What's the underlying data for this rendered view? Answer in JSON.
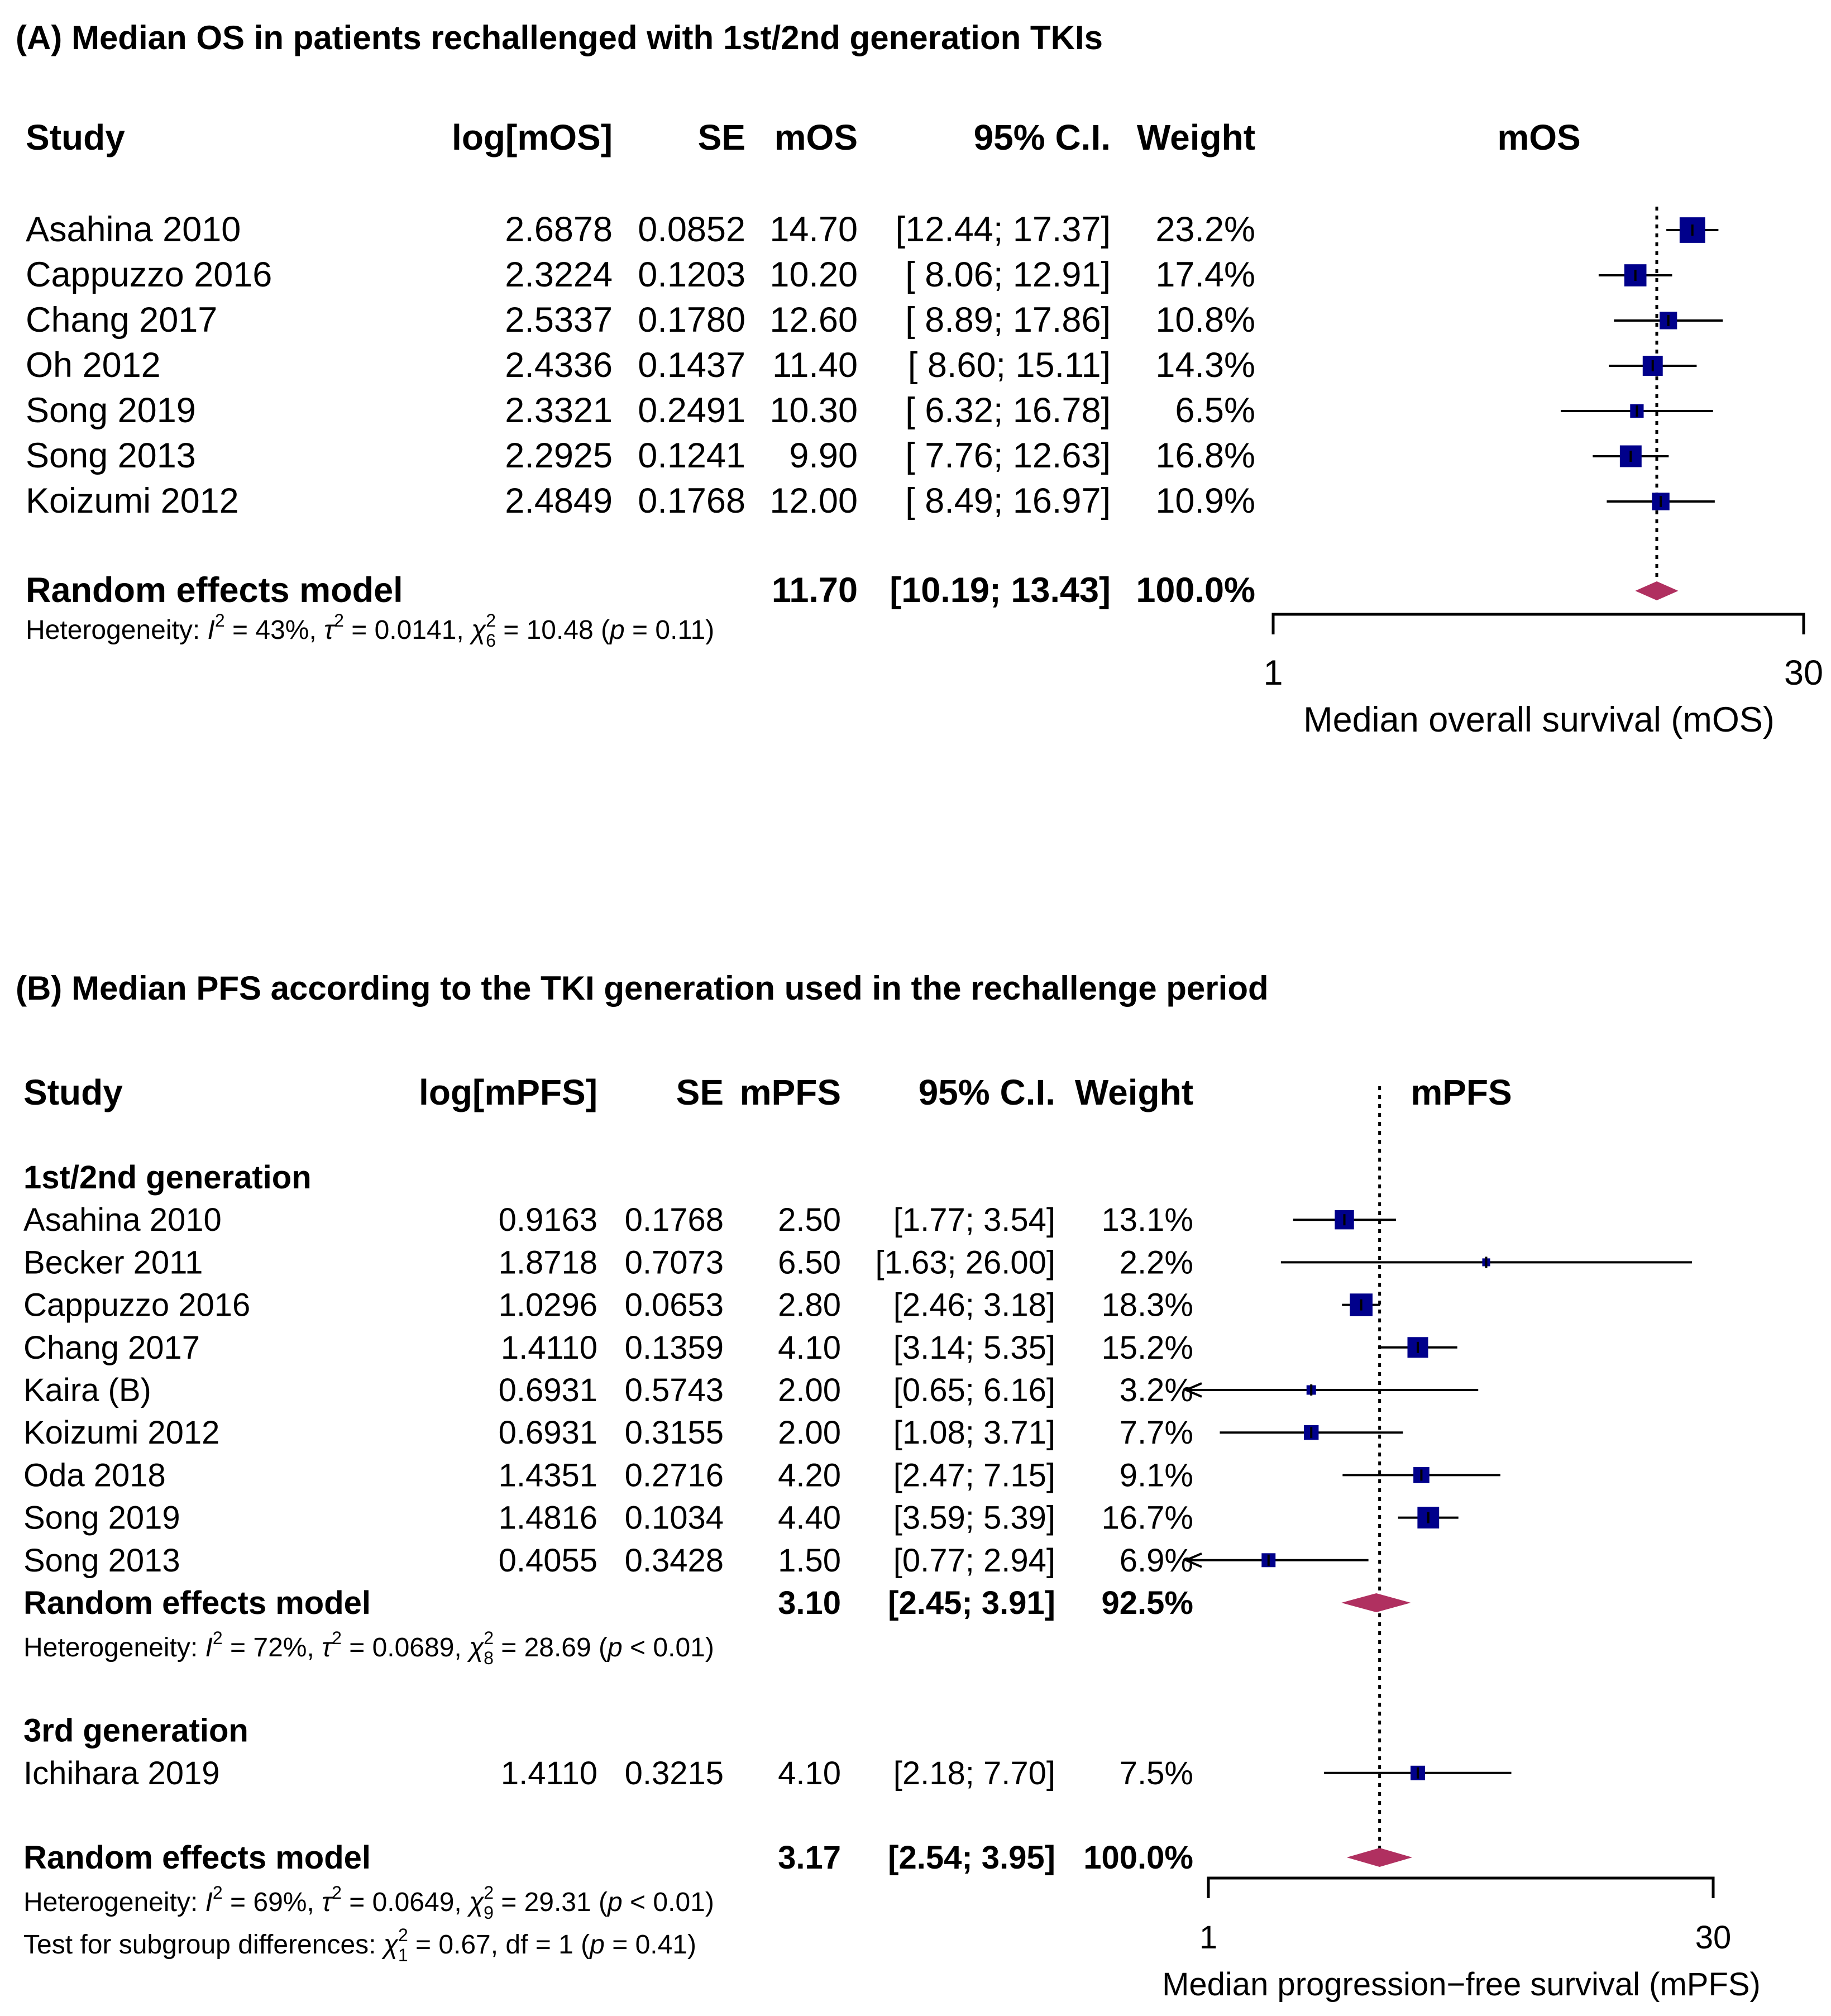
{
  "colors": {
    "box": "#00008B",
    "diamond": "#B03060",
    "line": "#000000"
  },
  "stat_symbols": {
    "I": "I",
    "tau": "τ",
    "chi": "χ",
    "p": "p",
    "sq": "2",
    "sep": ", ",
    "eq": " = ",
    "df": "df"
  },
  "chart_data": [
    {
      "type": "forest",
      "title": "(A) Median OS in patients rechallenged with 1st/2nd generation TKIs",
      "headers": {
        "study": "Study",
        "log": "log[mOS]",
        "se": "SE",
        "m": "mOS",
        "ci": "95% C.I.",
        "weight": "Weight",
        "plot": "mOS"
      },
      "xlabel": "Median overall survival (mOS)",
      "xscale": "log",
      "xlim": [
        1,
        30
      ],
      "xticks": [
        "1",
        "30"
      ],
      "reference_line": 11.7,
      "groups": [
        {
          "label": "",
          "studies": [
            {
              "name": "Asahina 2010",
              "log": "2.6878",
              "se": "0.0852",
              "m": "14.70",
              "ci": "[12.44; 17.37]",
              "lower": 12.44,
              "upper": 17.37,
              "weight": "23.2%",
              "w": 23.2
            },
            {
              "name": "Cappuzzo 2016",
              "log": "2.3224",
              "se": "0.1203",
              "m": "10.20",
              "ci": "[ 8.06; 12.91]",
              "lower": 8.06,
              "upper": 12.91,
              "weight": "17.4%",
              "w": 17.4
            },
            {
              "name": "Chang 2017",
              "log": "2.5337",
              "se": "0.1780",
              "m": "12.60",
              "ci": "[ 8.89; 17.86]",
              "lower": 8.89,
              "upper": 17.86,
              "weight": "10.8%",
              "w": 10.8
            },
            {
              "name": "Oh 2012",
              "log": "2.4336",
              "se": "0.1437",
              "m": "11.40",
              "ci": "[ 8.60; 15.11]",
              "lower": 8.6,
              "upper": 15.11,
              "weight": "14.3%",
              "w": 14.3
            },
            {
              "name": "Song 2019",
              "log": "2.3321",
              "se": "0.2491",
              "m": "10.30",
              "ci": "[ 6.32; 16.78]",
              "lower": 6.32,
              "upper": 16.78,
              "weight": "6.5%",
              "w": 6.5
            },
            {
              "name": "Song 2013",
              "log": "2.2925",
              "se": "0.1241",
              "m": "9.90",
              "ci": "[ 7.76; 12.63]",
              "lower": 7.76,
              "upper": 12.63,
              "weight": "16.8%",
              "w": 16.8
            },
            {
              "name": "Koizumi 2012",
              "log": "2.4849",
              "se": "0.1768",
              "m": "12.00",
              "ci": "[ 8.49; 16.97]",
              "lower": 8.49,
              "upper": 16.97,
              "weight": "10.9%",
              "w": 10.9
            }
          ]
        }
      ],
      "overall": {
        "name": "Random effects model",
        "m": "11.70",
        "ci": "[10.19; 13.43]",
        "est": 11.7,
        "lower": 10.19,
        "upper": 13.43,
        "weight": "100.0%",
        "het": {
          "label": "Heterogeneity: ",
          "I2": "43%",
          "tau2": "0.0141",
          "df": "6",
          "chi2": "10.48",
          "p_op": " = ",
          "p": "0.11"
        }
      }
    },
    {
      "type": "forest",
      "title": "(B) Median PFS according to the TKI generation used in the rechallenge period",
      "headers": {
        "study": "Study",
        "log": "log[mPFS]",
        "se": "SE",
        "m": "mPFS",
        "ci": "95% C.I.",
        "weight": "Weight",
        "plot": "mPFS"
      },
      "xlabel": "Median progression−free survival (mPFS)",
      "xscale": "log",
      "xlim": [
        1,
        30
      ],
      "xticks": [
        "1",
        "30"
      ],
      "reference_line": 3.17,
      "groups": [
        {
          "label": "1st/2nd generation",
          "studies": [
            {
              "name": "Asahina 2010",
              "log": "0.9163",
              "se": "0.1768",
              "m": "2.50",
              "ci": "[1.77;  3.54]",
              "lower": 1.77,
              "upper": 3.54,
              "weight": "13.1%",
              "w": 13.1
            },
            {
              "name": "Becker 2011",
              "log": "1.8718",
              "se": "0.7073",
              "m": "6.50",
              "ci": "[1.63; 26.00]",
              "lower": 1.63,
              "upper": 26.0,
              "weight": "2.2%",
              "w": 2.2
            },
            {
              "name": "Cappuzzo 2016",
              "log": "1.0296",
              "se": "0.0653",
              "m": "2.80",
              "ci": "[2.46;  3.18]",
              "lower": 2.46,
              "upper": 3.18,
              "weight": "18.3%",
              "w": 18.3
            },
            {
              "name": "Chang 2017",
              "log": "1.4110",
              "se": "0.1359",
              "m": "4.10",
              "ci": "[3.14;  5.35]",
              "lower": 3.14,
              "upper": 5.35,
              "weight": "15.2%",
              "w": 15.2
            },
            {
              "name": "Kaira (B)",
              "log": "0.6931",
              "se": "0.5743",
              "m": "2.00",
              "ci": "[0.65;  6.16]",
              "lower": 0.65,
              "upper": 6.16,
              "weight": "3.2%",
              "w": 3.2
            },
            {
              "name": "Koizumi 2012",
              "log": "0.6931",
              "se": "0.3155",
              "m": "2.00",
              "ci": "[1.08;  3.71]",
              "lower": 1.08,
              "upper": 3.71,
              "weight": "7.7%",
              "w": 7.7
            },
            {
              "name": "Oda 2018",
              "log": "1.4351",
              "se": "0.2716",
              "m": "4.20",
              "ci": "[2.47;  7.15]",
              "lower": 2.47,
              "upper": 7.15,
              "weight": "9.1%",
              "w": 9.1
            },
            {
              "name": "Song 2019",
              "log": "1.4816",
              "se": "0.1034",
              "m": "4.40",
              "ci": "[3.59;  5.39]",
              "lower": 3.59,
              "upper": 5.39,
              "weight": "16.7%",
              "w": 16.7
            },
            {
              "name": "Song 2013",
              "log": "0.4055",
              "se": "0.3428",
              "m": "1.50",
              "ci": "[0.77;  2.94]",
              "lower": 0.77,
              "upper": 2.94,
              "weight": "6.9%",
              "w": 6.9
            }
          ],
          "subtotal": {
            "name": "Random effects model",
            "m": "3.10",
            "ci": "[2.45;  3.91]",
            "est": 3.1,
            "lower": 2.45,
            "upper": 3.91,
            "weight": "92.5%",
            "het": {
              "label": "Heterogeneity: ",
              "I2": "72%",
              "tau2": "0.0689",
              "df": "8",
              "chi2": "28.69",
              "p_op": " < ",
              "p": "0.01"
            }
          }
        },
        {
          "label": "3rd generation",
          "studies": [
            {
              "name": "Ichihara 2019",
              "log": "1.4110",
              "se": "0.3215",
              "m": "4.10",
              "ci": "[2.18;  7.70]",
              "lower": 2.18,
              "upper": 7.7,
              "weight": "7.5%",
              "w": 7.5
            }
          ]
        }
      ],
      "overall": {
        "name": "Random effects model",
        "m": "3.17",
        "ci": "[2.54;  3.95]",
        "est": 3.17,
        "lower": 2.54,
        "upper": 3.95,
        "weight": "100.0%",
        "het": {
          "label": "Heterogeneity: ",
          "I2": "69%",
          "tau2": "0.0649",
          "df": "9",
          "chi2": "29.31",
          "p_op": " < ",
          "p": "0.01"
        }
      },
      "subgroup_test": {
        "label": "Test for subgroup differences: ",
        "df_sub": "1",
        "chi2": "0.67",
        "df_text": "df = 1",
        "p_op": " = ",
        "p": "0.41"
      }
    }
  ]
}
